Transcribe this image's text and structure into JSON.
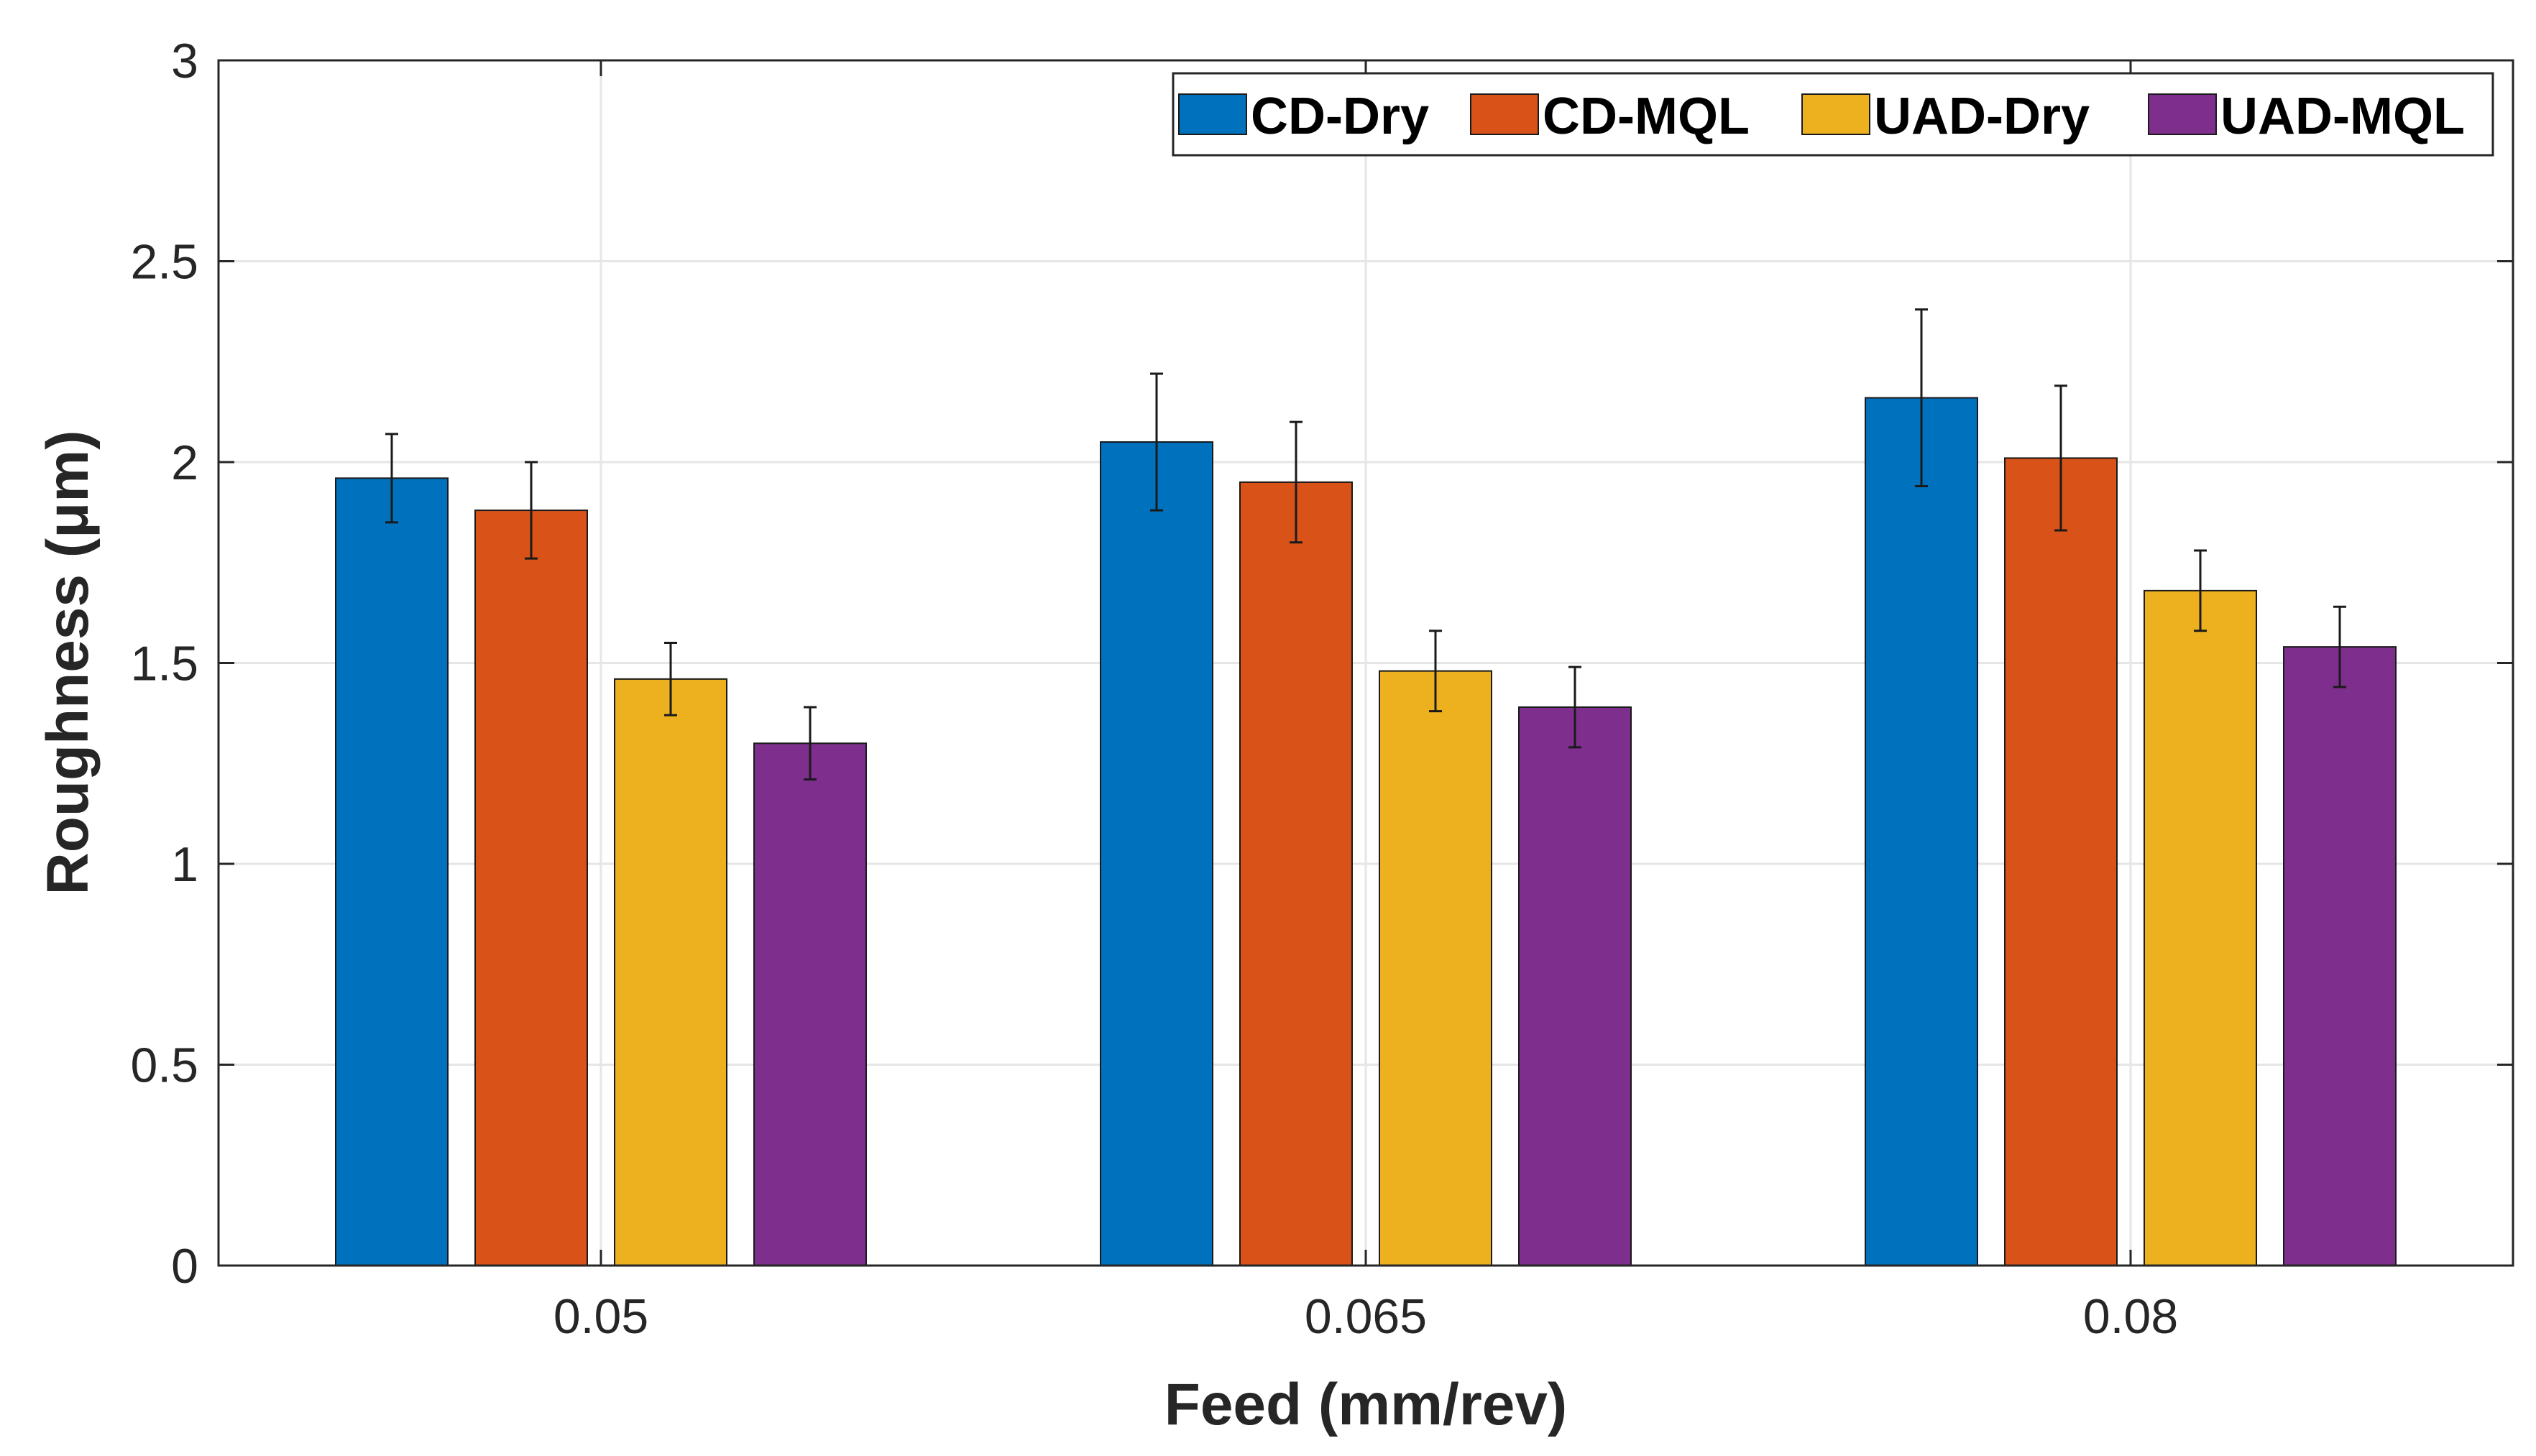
{
  "chart_data": {
    "type": "bar",
    "title": "",
    "xlabel": "Feed (mm/rev)",
    "ylabel": "Roughness  (μm)",
    "categories": [
      "0.05",
      "0.065",
      "0.08"
    ],
    "ylim": [
      0,
      3
    ],
    "yticks": [
      0,
      0.5,
      1,
      1.5,
      2,
      2.5,
      3
    ],
    "ytick_labels": [
      "0",
      "0.5",
      "1",
      "1.5",
      "2",
      "2.5",
      "3"
    ],
    "grid": true,
    "legend_position": "top-right",
    "series": [
      {
        "name": "CD-Dry",
        "color": "#0072BD",
        "values": [
          1.96,
          2.05,
          2.16
        ],
        "errors": [
          0.11,
          0.17,
          0.22
        ]
      },
      {
        "name": "CD-MQL",
        "color": "#D95319",
        "values": [
          1.88,
          1.95,
          2.01
        ],
        "errors": [
          0.12,
          0.15,
          0.18
        ]
      },
      {
        "name": "UAD-Dry",
        "color": "#EDB120",
        "values": [
          1.46,
          1.48,
          1.68
        ],
        "errors": [
          0.09,
          0.1,
          0.1
        ]
      },
      {
        "name": "UAD-MQL",
        "color": "#7E2F8E",
        "values": [
          1.3,
          1.39,
          1.54
        ],
        "errors": [
          0.09,
          0.1,
          0.1
        ]
      }
    ]
  }
}
